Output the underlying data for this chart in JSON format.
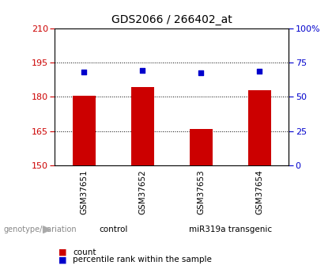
{
  "title": "GDS2066 / 266402_at",
  "samples": [
    "GSM37651",
    "GSM37652",
    "GSM37653",
    "GSM37654"
  ],
  "bar_values": [
    180.5,
    184.5,
    166.0,
    183.0
  ],
  "dot_values": [
    191.0,
    191.8,
    190.5,
    191.2
  ],
  "ylim": [
    150,
    210
  ],
  "y_ticks_left": [
    150,
    165,
    180,
    195,
    210
  ],
  "right_tick_positions": [
    150,
    165,
    180,
    195,
    210
  ],
  "right_tick_labels": [
    "0",
    "25",
    "50",
    "75",
    "100%"
  ],
  "bar_color": "#cc0000",
  "dot_color": "#0000cc",
  "bg_color": "#ffffff",
  "tick_label_color_left": "#cc0000",
  "tick_label_color_right": "#0000cc",
  "sample_box_color": "#d3d3d3",
  "groups": [
    {
      "label": "control",
      "n_samples": 2,
      "color": "#c8f0c8"
    },
    {
      "label": "miR319a transgenic",
      "n_samples": 2,
      "color": "#55ee55"
    }
  ],
  "genotype_label": "genotype/variation",
  "legend_count": "count",
  "legend_percentile": "percentile rank within the sample",
  "bar_bottom": 150,
  "figsize": [
    4.2,
    3.45
  ],
  "dpi": 100
}
